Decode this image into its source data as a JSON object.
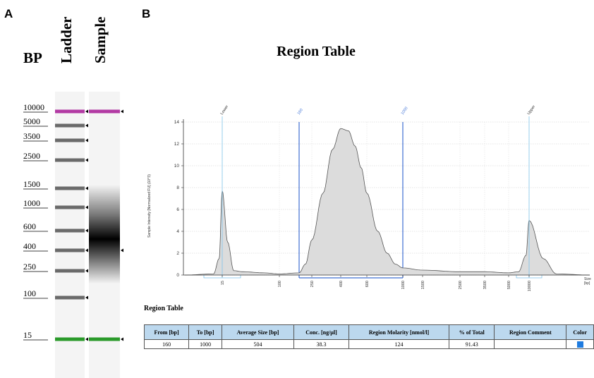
{
  "panels": {
    "a_label": "A",
    "b_label": "B"
  },
  "gel": {
    "bp_title": "BP",
    "lanes": [
      "Ladder",
      "Sample"
    ],
    "marker_labels": [
      "10000",
      "5000",
      "3500",
      "2500",
      "1500",
      "1000",
      "600",
      "400",
      "250",
      "100",
      "15"
    ],
    "ladder_band_sizes_bp": [
      10000,
      5000,
      3500,
      2500,
      1500,
      1000,
      600,
      400,
      250,
      100,
      15
    ],
    "marker_colors": {
      "upper": "#b23aa3",
      "lower": "#2a9a2a"
    },
    "sample_bands_bp": [
      10000,
      400,
      15
    ]
  },
  "electropherogram": {
    "title": "Region Table",
    "ylabel": "Sample Intensity [Normalized FU] (10^3)",
    "xlabel": "Size\n[bp]",
    "marker_labels": {
      "lower": "Lower",
      "upper": "Upper",
      "region_start": "160",
      "region_end": "1000"
    }
  },
  "chart_data": {
    "type": "line",
    "title": "Region Table",
    "ylabel": "Sample Intensity [Normalized FU] (10^3)",
    "xlabel": "Size [bp]",
    "yticks": [
      0,
      2,
      4,
      6,
      8,
      10,
      12,
      14
    ],
    "ylim": [
      0,
      14
    ],
    "xticks": [
      "15",
      "100",
      "250",
      "400",
      "600",
      "1000",
      "1500",
      "2500",
      "3500",
      "5000",
      "10000"
    ],
    "grid": true,
    "series": [
      {
        "x": [
          1,
          8,
          12,
          15,
          18,
          22,
          30,
          60,
          100,
          160,
          200,
          250,
          300,
          350,
          400,
          450,
          500,
          550,
          600,
          700,
          800,
          900,
          1000,
          1500,
          2500,
          3500,
          5000,
          7000,
          9000,
          10000,
          11000,
          12000,
          15000
        ],
        "y": [
          0,
          0.1,
          1.5,
          7.7,
          3.0,
          0.4,
          0.3,
          0.2,
          0.1,
          0.2,
          1.0,
          3.2,
          7.5,
          11.5,
          13.4,
          13.2,
          11.8,
          9.8,
          7.5,
          4.0,
          2.0,
          1.0,
          0.65,
          0.45,
          0.3,
          0.3,
          0.2,
          0.3,
          1.8,
          5.0,
          1.5,
          0.1,
          0
        ]
      }
    ],
    "region": {
      "from": 160,
      "to": 1000
    },
    "markers": [
      {
        "label": "Lower",
        "x": 15
      },
      {
        "label": "Upper",
        "x": 10000
      }
    ]
  },
  "region_table": {
    "heading": "Region Table",
    "columns": [
      "From [bp]",
      "To [bp]",
      "Average Size [bp]",
      "Conc. [ng/µl]",
      "Region Molarity [nmol/l]",
      "% of Total",
      "Region Comment",
      "Color"
    ],
    "rows": [
      {
        "from": "160",
        "to": "1000",
        "avg": "504",
        "conc": "38.3",
        "molarity": "124",
        "pct": "91.43",
        "comment": "",
        "color": "#1f7ce0"
      }
    ]
  }
}
